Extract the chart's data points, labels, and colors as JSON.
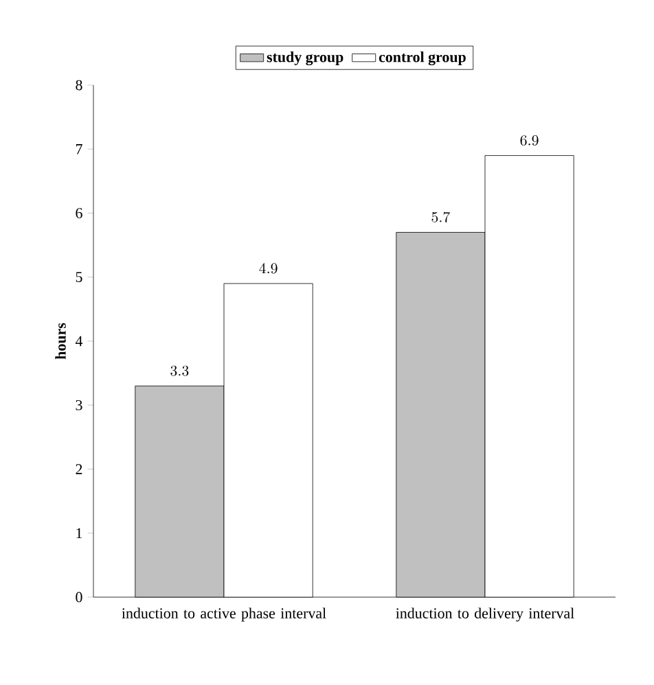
{
  "chart_data": {
    "type": "bar",
    "ylabel": "hours",
    "categories": [
      "induction to active phase interval",
      "induction to delivery interval"
    ],
    "series": [
      {
        "name": "study group",
        "color": "#c0c0c0",
        "values": [
          3.3,
          5.7
        ]
      },
      {
        "name": "control group",
        "color": "#ffffff",
        "values": [
          4.9,
          6.9
        ]
      }
    ],
    "ylim": [
      0,
      8
    ],
    "yticks": [
      0,
      1,
      2,
      3,
      4,
      5,
      6,
      7,
      8
    ],
    "data_labels": true,
    "legend": "top",
    "grid": false
  }
}
